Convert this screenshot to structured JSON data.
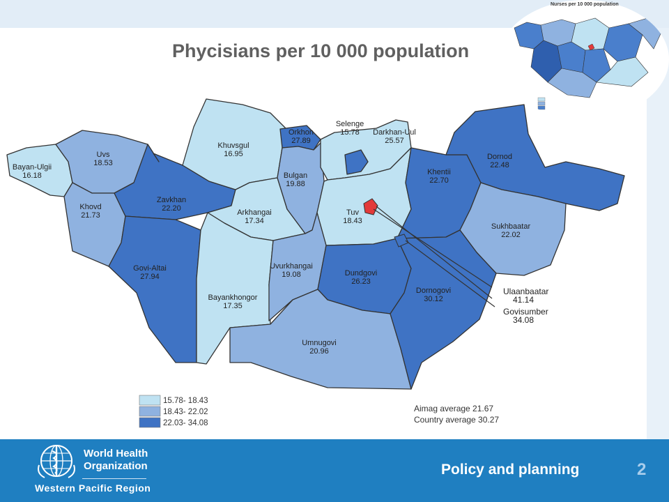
{
  "title": "Phycisians per 10 000 population",
  "colors": {
    "low": "#bfe2f2",
    "mid": "#8fb2e0",
    "high": "#3f73c4",
    "capital": "#e23a3a",
    "border": "#333333",
    "footer": "#1f7fc1"
  },
  "map_data": {
    "regions": [
      {
        "name": "Bayan-Ulgii",
        "value": "16.18",
        "class": "low"
      },
      {
        "name": "Uvs",
        "value": "18.53",
        "class": "mid"
      },
      {
        "name": "Khovd",
        "value": "21.73",
        "class": "mid"
      },
      {
        "name": "Zavkhan",
        "value": "22.20",
        "class": "high"
      },
      {
        "name": "Govi-Altai",
        "value": "27.94",
        "class": "high"
      },
      {
        "name": "Khuvsgul",
        "value": "16.95",
        "class": "low"
      },
      {
        "name": "Arkhangai",
        "value": "17.34",
        "class": "low"
      },
      {
        "name": "Bayankhongor",
        "value": "17.35",
        "class": "low"
      },
      {
        "name": "Orkhon",
        "value": "27.89",
        "class": "high"
      },
      {
        "name": "Bulgan",
        "value": "19.88",
        "class": "mid"
      },
      {
        "name": "Selenge",
        "value": "15.78",
        "class": "low"
      },
      {
        "name": "Darkhan-Uul",
        "value": "25.57",
        "class": "high"
      },
      {
        "name": "Tuv",
        "value": "18.43",
        "class": "low"
      },
      {
        "name": "Uvurkhangai",
        "value": "19.08",
        "class": "mid"
      },
      {
        "name": "Dundgovi",
        "value": "26.23",
        "class": "high"
      },
      {
        "name": "Umnugovi",
        "value": "20.96",
        "class": "mid"
      },
      {
        "name": "Khentii",
        "value": "22.70",
        "class": "high"
      },
      {
        "name": "Dornod",
        "value": "22.48",
        "class": "high"
      },
      {
        "name": "Sukhbaatar",
        "value": "22.02",
        "class": "mid"
      },
      {
        "name": "Dornogovi",
        "value": "30.12",
        "class": "high"
      }
    ],
    "callouts": [
      {
        "name": "Ulaanbaatar",
        "value": "41.14"
      },
      {
        "name": "Govisumber",
        "value": "34.08"
      }
    ],
    "legend": [
      {
        "label": "15.78- 18.43",
        "class": "low"
      },
      {
        "label": "18.43- 22.02",
        "class": "mid"
      },
      {
        "label": "22.03- 34.08",
        "class": "high"
      }
    ],
    "averages": [
      "Aimag average 21.67",
      "Country average 30.27"
    ]
  },
  "inset": {
    "title": "Nurses per 10 000 population"
  },
  "footer": {
    "who_line1": "World Health",
    "who_line2": "Organization",
    "region": "Western Pacific Region",
    "section_title": "Policy and planning",
    "page_number": "2"
  }
}
